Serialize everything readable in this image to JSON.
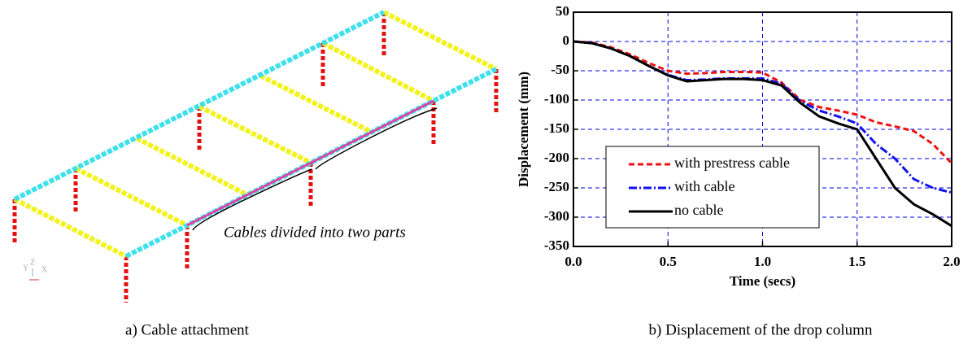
{
  "diagram": {
    "annotation": "Cables divided into two parts",
    "triad": [
      "Y",
      "Z",
      "X"
    ]
  },
  "captions": [
    "a) Cable attachment",
    "b) Displacement of the drop column"
  ],
  "chart_data": {
    "type": "line",
    "xlabel": "Time (secs)",
    "ylabel": "Displacement (mm)",
    "x": [
      0,
      0.1,
      0.2,
      0.3,
      0.4,
      0.5,
      0.6,
      0.7,
      0.8,
      0.9,
      1.0,
      1.1,
      1.2,
      1.3,
      1.4,
      1.5,
      1.6,
      1.7,
      1.8,
      1.9,
      2.0
    ],
    "series": [
      {
        "name": "with prestress cable",
        "color": "#ee1111",
        "dash": "dashed",
        "values": [
          0,
          -2,
          -10,
          -22,
          -37,
          -50,
          -55,
          -54,
          -52,
          -52,
          -53,
          -70,
          -100,
          -112,
          -118,
          -125,
          -138,
          -145,
          -153,
          -175,
          -208
        ]
      },
      {
        "name": "with cable",
        "color": "#1111ee",
        "dash": "dashdot",
        "values": [
          0,
          -3,
          -12,
          -25,
          -42,
          -57,
          -66,
          -65,
          -63,
          -63,
          -63,
          -72,
          -102,
          -118,
          -128,
          -140,
          -175,
          -200,
          -235,
          -250,
          -258
        ]
      },
      {
        "name": "no cable",
        "color": "#000000",
        "dash": "solid",
        "values": [
          0,
          -3,
          -12,
          -25,
          -42,
          -58,
          -68,
          -66,
          -64,
          -64,
          -66,
          -75,
          -105,
          -128,
          -140,
          -150,
          -200,
          -250,
          -278,
          -295,
          -315
        ]
      }
    ],
    "xlim": [
      0,
      2
    ],
    "ylim": [
      -350,
      50
    ],
    "xticks": [
      {
        "value": 0,
        "label": "0.0"
      },
      0.5,
      {
        "value": 1,
        "label": "1.0"
      },
      1.5,
      {
        "value": 2,
        "label": "2.0"
      }
    ],
    "yticks": [
      50,
      0,
      -50,
      -100,
      -150,
      -200,
      -250,
      -300,
      -350
    ],
    "grid": true,
    "grid_color": "#0000ee",
    "legend": "lower left"
  }
}
